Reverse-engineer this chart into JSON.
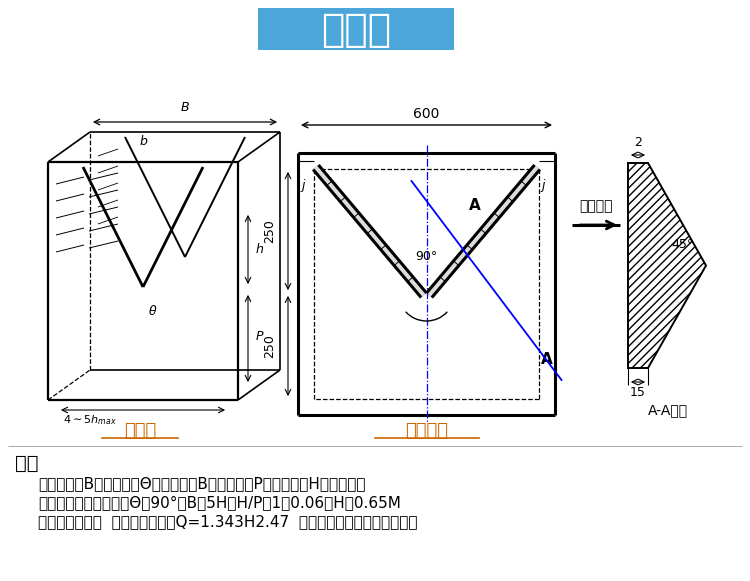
{
  "title": "三角堰",
  "title_bg_color": "#4da6d9",
  "title_text_color": "#ffffff",
  "title_fontsize": 28,
  "bg_color": "#ffffff",
  "label_limage": "立面图",
  "label_rimage": "横截面图",
  "label_color": "#cc6600",
  "section_label": "A-A剖面",
  "water_dir_label": "水流方向",
  "note_title": "说明",
  "note_lines": [
    "符号说明：B为堰口宽，Θ为堰口角，B为渠道宽，P为堰底高，H为实测水头",
    "堰槽修建及使用条件：Θ＝90°，B＞5H，H/P＜1，0.06＜H＜0.65M",
    "图二为建议尺寸  流量计算公式：Q=1.343H2.47  选择流量槽型为三角堰即可。"
  ],
  "note_fontsize": 11,
  "note_title_fontsize": 14
}
